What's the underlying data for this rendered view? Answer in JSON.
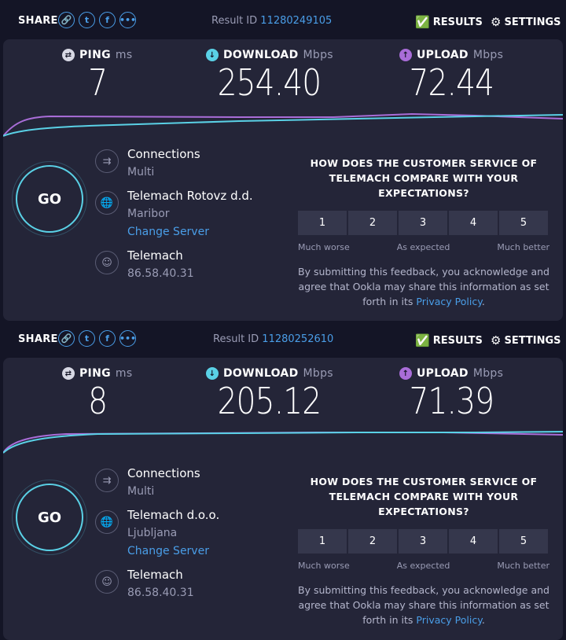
{
  "colors": {
    "background": "#141526",
    "panel": "#242538",
    "accent": "#4a9ee8",
    "go_ring": "#5ad1e6",
    "download": "#5ad1e6",
    "upload": "#a96dd8"
  },
  "results": [
    {
      "share_label": "SHARE",
      "share_icons": [
        "link-icon",
        "twitter-icon",
        "facebook-icon",
        "more-icon"
      ],
      "result_id_label": "Result ID",
      "result_id": "11280249105",
      "results_label": "RESULTS",
      "settings_label": "SETTINGS",
      "ping": {
        "label": "PING",
        "unit": "ms",
        "value": "7"
      },
      "download": {
        "label": "DOWNLOAD",
        "unit": "Mbps",
        "value": "254.40"
      },
      "upload": {
        "label": "UPLOAD",
        "unit": "Mbps",
        "value": "72.44"
      },
      "go_label": "GO",
      "connections": {
        "title": "Connections",
        "value": "Multi"
      },
      "server": {
        "name": "Telemach Rotovz d.d.",
        "location": "Maribor",
        "change": "Change Server"
      },
      "isp": {
        "name": "Telemach",
        "ip": "86.58.40.31"
      },
      "survey": {
        "question": "HOW DOES THE CUSTOMER SERVICE OF TELEMACH COMPARE WITH YOUR EXPECTATIONS?",
        "options": [
          "1",
          "2",
          "3",
          "4",
          "5"
        ],
        "low": "Much worse",
        "mid": "As expected",
        "high": "Much better",
        "disclaimer": "By submitting this feedback, you acknowledge and agree that Ookla may share this information as set forth in its",
        "policy": "Privacy Policy",
        "end": "."
      }
    },
    {
      "share_label": "SHARE",
      "share_icons": [
        "link-icon",
        "twitter-icon",
        "facebook-icon",
        "more-icon"
      ],
      "result_id_label": "Result ID",
      "result_id": "11280252610",
      "results_label": "RESULTS",
      "settings_label": "SETTINGS",
      "ping": {
        "label": "PING",
        "unit": "ms",
        "value": "8"
      },
      "download": {
        "label": "DOWNLOAD",
        "unit": "Mbps",
        "value": "205.12"
      },
      "upload": {
        "label": "UPLOAD",
        "unit": "Mbps",
        "value": "71.39"
      },
      "go_label": "GO",
      "connections": {
        "title": "Connections",
        "value": "Multi"
      },
      "server": {
        "name": "Telemach d.o.o.",
        "location": "Ljubljana",
        "change": "Change Server"
      },
      "isp": {
        "name": "Telemach",
        "ip": "86.58.40.31"
      },
      "survey": {
        "question": "HOW DOES THE CUSTOMER SERVICE OF TELEMACH COMPARE WITH YOUR EXPECTATIONS?",
        "options": [
          "1",
          "2",
          "3",
          "4",
          "5"
        ],
        "low": "Much worse",
        "mid": "As expected",
        "high": "Much better",
        "disclaimer": "By submitting this feedback, you acknowledge and agree that Ookla may share this information as set forth in its",
        "policy": "Privacy Policy",
        "end": "."
      }
    }
  ]
}
